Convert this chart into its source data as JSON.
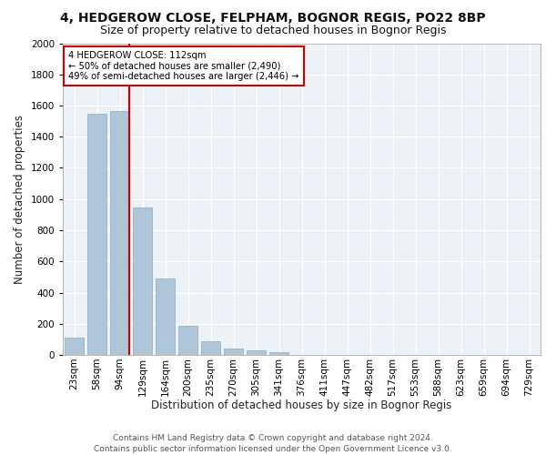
{
  "title": "4, HEDGEROW CLOSE, FELPHAM, BOGNOR REGIS, PO22 8BP",
  "subtitle": "Size of property relative to detached houses in Bognor Regis",
  "xlabel": "Distribution of detached houses by size in Bognor Regis",
  "ylabel": "Number of detached properties",
  "bar_labels": [
    "23sqm",
    "58sqm",
    "94sqm",
    "129sqm",
    "164sqm",
    "200sqm",
    "235sqm",
    "270sqm",
    "305sqm",
    "341sqm",
    "376sqm",
    "411sqm",
    "447sqm",
    "482sqm",
    "517sqm",
    "553sqm",
    "588sqm",
    "623sqm",
    "659sqm",
    "694sqm",
    "729sqm"
  ],
  "bar_values": [
    110,
    1545,
    1565,
    945,
    490,
    185,
    90,
    40,
    30,
    15,
    0,
    0,
    0,
    0,
    0,
    0,
    0,
    0,
    0,
    0,
    0
  ],
  "bar_color": "#aec6d8",
  "bar_edge_color": "#8aafc8",
  "vline_color": "#cc0000",
  "ylim": [
    0,
    2000
  ],
  "yticks": [
    0,
    200,
    400,
    600,
    800,
    1000,
    1200,
    1400,
    1600,
    1800,
    2000
  ],
  "annotation_text": "4 HEDGEROW CLOSE: 112sqm\n← 50% of detached houses are smaller (2,490)\n49% of semi-detached houses are larger (2,446) →",
  "annotation_box_color": "#ffffff",
  "annotation_box_edgecolor": "#cc0000",
  "footer_text": "Contains HM Land Registry data © Crown copyright and database right 2024.\nContains public sector information licensed under the Open Government Licence v3.0.",
  "background_color": "#edf2f7",
  "grid_color": "#ffffff",
  "title_fontsize": 10,
  "subtitle_fontsize": 9,
  "axis_label_fontsize": 8.5,
  "tick_fontsize": 7.5,
  "footer_fontsize": 6.5
}
